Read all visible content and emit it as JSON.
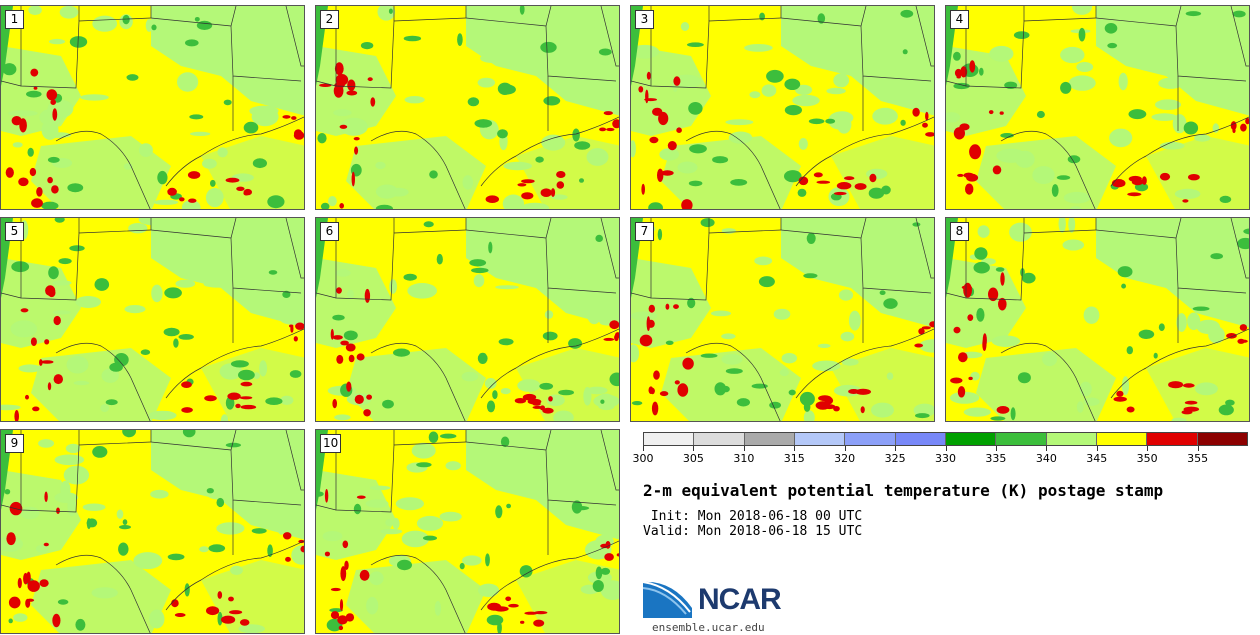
{
  "panels": [
    {
      "label": "1"
    },
    {
      "label": "2"
    },
    {
      "label": "3"
    },
    {
      "label": "4"
    },
    {
      "label": "5"
    },
    {
      "label": "6"
    },
    {
      "label": "7"
    },
    {
      "label": "8"
    },
    {
      "label": "9"
    },
    {
      "label": "10"
    }
  ],
  "colorbar": {
    "ticks": [
      "300",
      "305",
      "310",
      "315",
      "320",
      "325",
      "330",
      "335",
      "340",
      "345",
      "350",
      "355"
    ],
    "colors": [
      "#f0f0f0",
      "#dcdcdc",
      "#aaaaaa",
      "#b4c8f8",
      "#8ca0f8",
      "#7888f8",
      "#00a000",
      "#3cbe3c",
      "#b4f878",
      "#ffff00",
      "#e00000",
      "#8c0000"
    ]
  },
  "title": "2-m equivalent potential temperature (K) postage stamp",
  "init": " Init: Mon 2018-06-18 00 UTC",
  "valid": "Valid: Mon 2018-06-18 15 UTC",
  "logo": {
    "text": "NCAR",
    "url_text": "ensemble.ucar.edu"
  },
  "map_colors": {
    "warm": "#ffff00",
    "cool": "#b4f878",
    "green": "#3cbe3c",
    "hot": "#e00000",
    "border": "#333333"
  }
}
